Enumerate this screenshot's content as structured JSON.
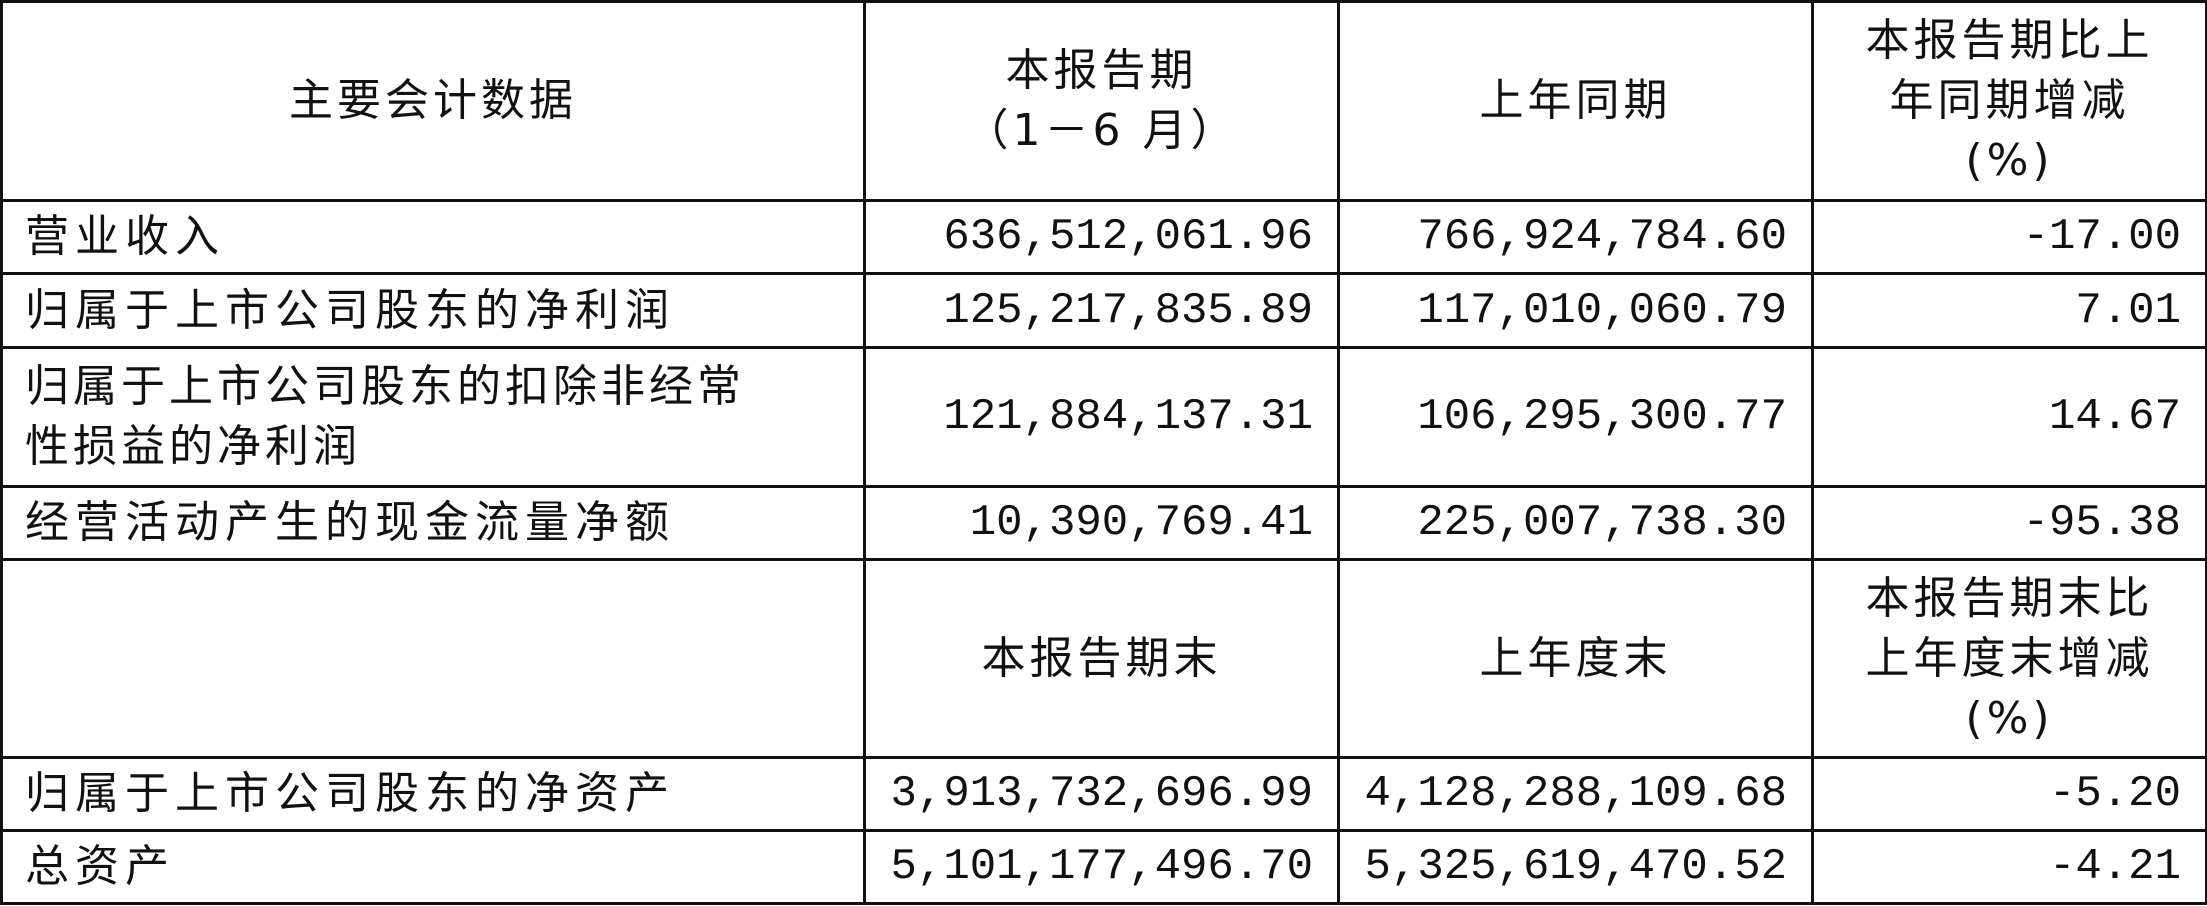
{
  "header": {
    "col0": "主要会计数据",
    "col1_line1": "本报告期",
    "col1_line2": "（1－6 月）",
    "col2": "上年同期",
    "col3_line1": "本报告期比上",
    "col3_line2": "年同期增减",
    "col3_line3": "(%)"
  },
  "rows_a": [
    {
      "label": "营业收入",
      "current": "636,512,061.96",
      "prior": "766,924,784.60",
      "change": "-17.00"
    },
    {
      "label": "归属于上市公司股东的净利润",
      "current": "125,217,835.89",
      "prior": "117,010,060.79",
      "change": "7.01"
    },
    {
      "label_line1": "归属于上市公司股东的扣除非经常",
      "label_line2": "性损益的净利润",
      "current": "121,884,137.31",
      "prior": "106,295,300.77",
      "change": "14.67"
    },
    {
      "label": "经营活动产生的现金流量净额",
      "current": "10,390,769.41",
      "prior": "225,007,738.30",
      "change": "-95.38"
    }
  ],
  "header2": {
    "col0": "",
    "col1": "本报告期末",
    "col2": "上年度末",
    "col3_line1": "本报告期末比",
    "col3_line2": "上年度末增减",
    "col3_line3": "(%)"
  },
  "rows_b": [
    {
      "label": "归属于上市公司股东的净资产",
      "current": "3,913,732,696.99",
      "prior": "4,128,288,109.68",
      "change": "-5.20"
    },
    {
      "label": "总资产",
      "current": "5,101,177,496.70",
      "prior": "5,325,619,470.52",
      "change": "-4.21"
    }
  ]
}
